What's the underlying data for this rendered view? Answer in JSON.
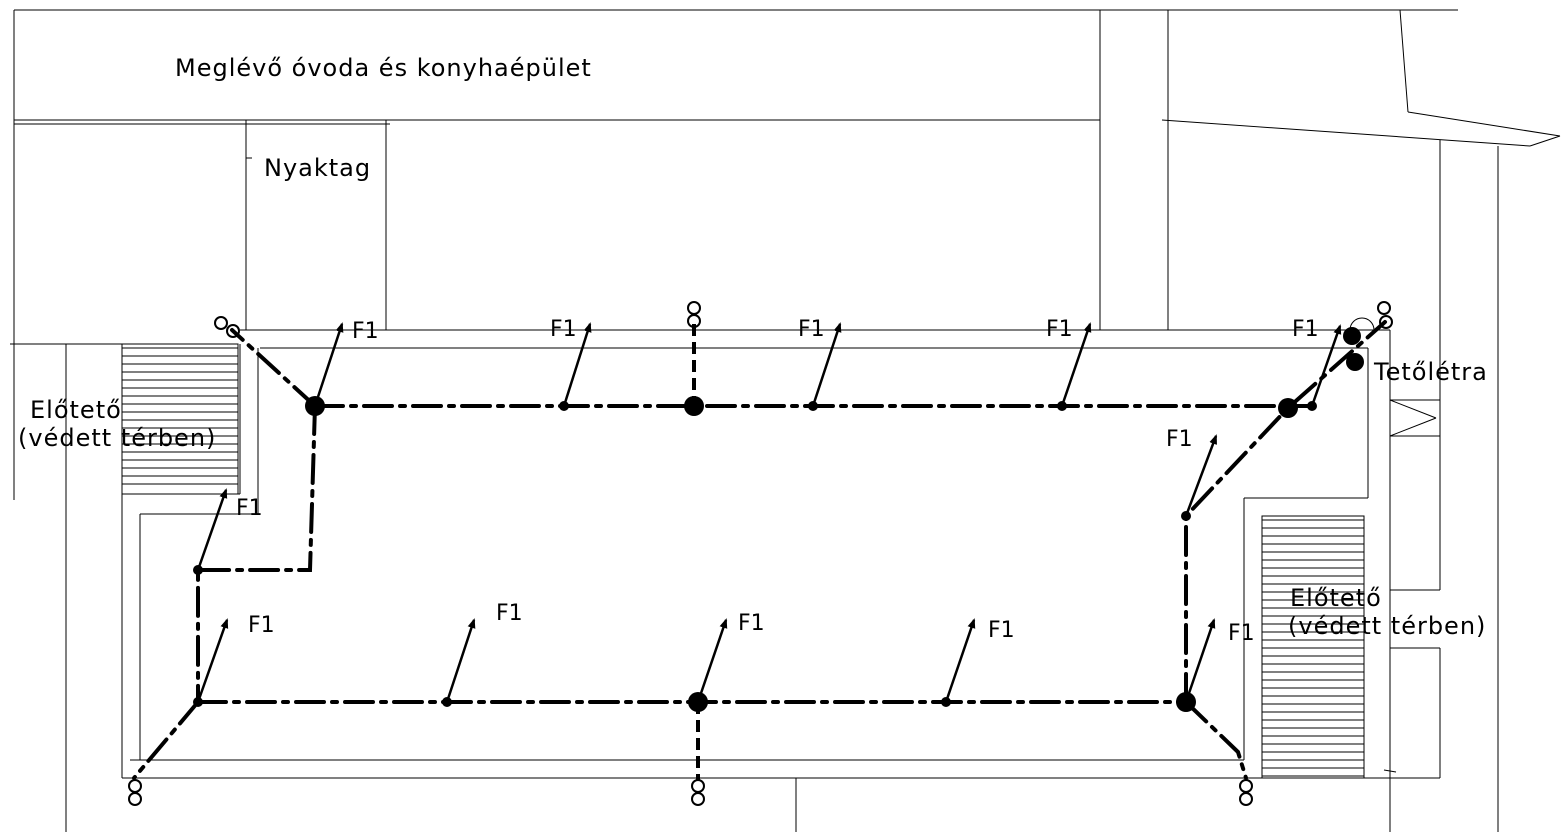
{
  "labels": {
    "existing_building": "Meglévő óvoda és konyhaépület",
    "neck": "Nyaktag",
    "canopy_left_line1": "Előtető",
    "canopy_left_line2": "(védett térben)",
    "canopy_right_line1": "Előtető",
    "canopy_right_line2": "(védett térben)",
    "roof_ladder": "Tetőlétra"
  },
  "air_terminal_label": "F1"
}
